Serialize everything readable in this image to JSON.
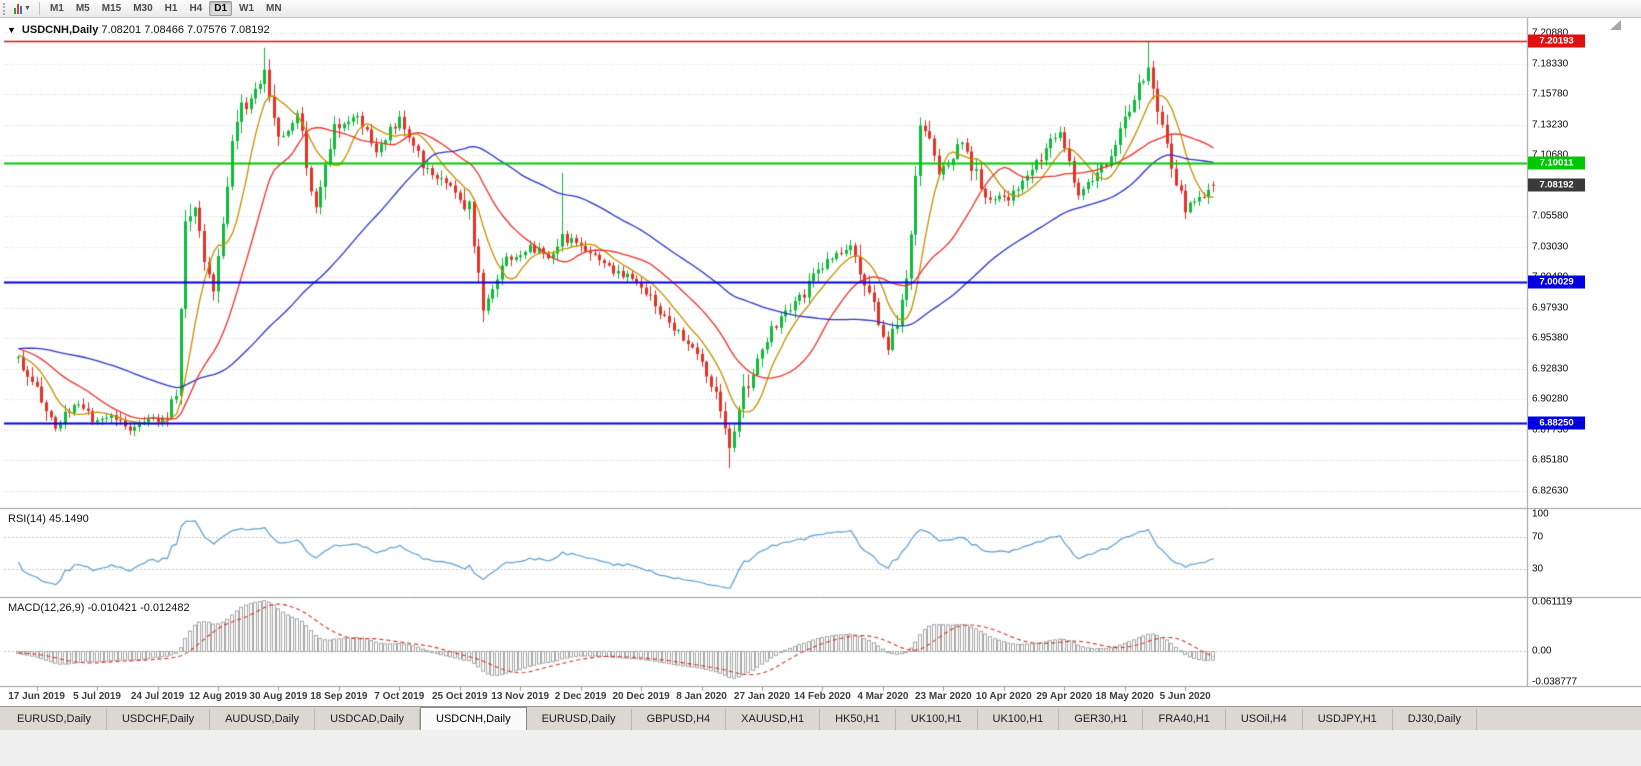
{
  "toolbar": {
    "timeframes": [
      "M1",
      "M5",
      "M15",
      "M30",
      "H1",
      "H4",
      "D1",
      "W1",
      "MN"
    ],
    "active_timeframe": "D1"
  },
  "chart": {
    "title": "USDCNH,Daily",
    "ohlc_text": "7.08201 7.08466 7.07576 7.08192",
    "price_axis": {
      "min": 6.81254,
      "max": 7.22138,
      "labels": [
        "7.20880",
        "7.18330",
        "7.15780",
        "7.13230",
        "7.10680",
        "7.08130",
        "7.05580",
        "7.03030",
        "7.00480",
        "6.97930",
        "6.95380",
        "6.92830",
        "6.90280",
        "6.87730",
        "6.85180",
        "6.82630"
      ]
    },
    "horizontal_lines": [
      {
        "value": 7.20193,
        "label": "7.20193",
        "color": "#e01010",
        "width": 1.4
      },
      {
        "value": 7.10011,
        "label": "7.10011",
        "color": "#00c800",
        "width": 2
      },
      {
        "value": 7.00029,
        "label": "7.00029",
        "color": "#0000e0",
        "width": 2
      },
      {
        "value": 6.8825,
        "label": "6.88250",
        "color": "#0000e0",
        "width": 2
      }
    ],
    "bid_badge": {
      "value": 7.08192,
      "label": "7.08192",
      "color": "#3a3a3a"
    },
    "colors": {
      "background": "#ffffff",
      "grid": "#d6d6d6",
      "candle_up": "#10b93c",
      "candle_down": "#e03228",
      "ma_fast_gold": "#c49000",
      "ma_mid_red": "#f03028",
      "ma_slow_blue": "#2a35c8",
      "rsi_line": "#5d9fd3",
      "macd_hist": "#a8a8a8",
      "macd_signal": "#d23a2e"
    }
  },
  "rsi": {
    "name": "RSI(14)",
    "value": "45.1490",
    "axis_labels": [
      "100",
      "70",
      "30"
    ],
    "axis_values": [
      100,
      70,
      30
    ],
    "levels": [
      70,
      30
    ],
    "range": [
      -5,
      105
    ]
  },
  "macd": {
    "name": "MACD(12,26,9)",
    "values": "-0.010421 -0.012482",
    "axis_labels": [
      "0.061119",
      "0.00",
      "-0.038777"
    ],
    "axis_values": [
      0.061119,
      0,
      -0.038777
    ],
    "range": [
      -0.042,
      0.065
    ]
  },
  "date_axis": [
    "17 Jun 2019",
    "5 Jul 2019",
    "24 Jul 2019",
    "12 Aug 2019",
    "30 Aug 2019",
    "18 Sep 2019",
    "7 Oct 2019",
    "25 Oct 2019",
    "13 Nov 2019",
    "2 Dec 2019",
    "20 Dec 2019",
    "8 Jan 2020",
    "27 Jan 2020",
    "14 Feb 2020",
    "4 Mar 2020",
    "23 Mar 2020",
    "10 Apr 2020",
    "29 Apr 2020",
    "18 May 2020",
    "5 Jun 2020"
  ],
  "tabs": {
    "active_index": 4,
    "items": [
      "EURUSD,Daily",
      "USDCHF,Daily",
      "AUDUSD,Daily",
      "USDCAD,Daily",
      "USDCNH,Daily",
      "EURUSD,Daily",
      "GBPUSD,H4",
      "XAUUSD,H1",
      "HK50,H1",
      "UK100,H1",
      "UK100,H1",
      "GER30,H1",
      "FRA40,H1",
      "USOil,H4",
      "USDJPY,H1",
      "DJ30,Daily"
    ],
    "active_label": "USDCNH,Daily"
  },
  "chart_data": {
    "type": "candlestick",
    "symbol": "USDCNH",
    "timeframe": "Daily",
    "bars": 258,
    "label_every": 13,
    "first_label_index": 4,
    "price_range": [
      6.81254,
      7.22138
    ],
    "date_ticks": [
      "17 Jun 2019",
      "5 Jul 2019",
      "24 Jul 2019",
      "12 Aug 2019",
      "30 Aug 2019",
      "18 Sep 2019",
      "7 Oct 2019",
      "25 Oct 2019",
      "13 Nov 2019",
      "2 Dec 2019",
      "20 Dec 2019",
      "8 Jan 2020",
      "27 Jan 2020",
      "14 Feb 2020",
      "4 Mar 2020",
      "23 Mar 2020",
      "10 Apr 2020",
      "29 Apr 2020",
      "18 May 2020",
      "5 Jun 2020"
    ],
    "last_bar": {
      "open": 7.08201,
      "high": 7.08466,
      "low": 7.07576,
      "close": 7.08192
    },
    "history_anchors": [
      [
        -60,
        6.9
      ],
      [
        -30,
        6.965
      ],
      [
        -10,
        6.945
      ],
      [
        -1,
        6.938
      ]
    ],
    "close_path_anchors": [
      [
        0,
        6.935
      ],
      [
        4,
        6.912
      ],
      [
        8,
        6.878
      ],
      [
        12,
        6.9
      ],
      [
        16,
        6.886
      ],
      [
        20,
        6.89
      ],
      [
        24,
        6.876
      ],
      [
        28,
        6.884
      ],
      [
        32,
        6.888
      ],
      [
        34,
        6.905
      ],
      [
        36,
        7.045
      ],
      [
        38,
        7.06
      ],
      [
        40,
        7.02
      ],
      [
        42,
        6.998
      ],
      [
        44,
        7.055
      ],
      [
        47,
        7.14
      ],
      [
        51,
        7.158
      ],
      [
        53,
        7.175
      ],
      [
        56,
        7.118
      ],
      [
        60,
        7.142
      ],
      [
        64,
        7.062
      ],
      [
        68,
        7.128
      ],
      [
        73,
        7.142
      ],
      [
        77,
        7.112
      ],
      [
        82,
        7.136
      ],
      [
        87,
        7.1
      ],
      [
        92,
        7.082
      ],
      [
        97,
        7.062
      ],
      [
        100,
        6.978
      ],
      [
        104,
        7.016
      ],
      [
        110,
        7.03
      ],
      [
        114,
        7.022
      ],
      [
        117,
        7.038
      ],
      [
        121,
        7.03
      ],
      [
        127,
        7.012
      ],
      [
        133,
        7.002
      ],
      [
        139,
        6.972
      ],
      [
        145,
        6.942
      ],
      [
        150,
        6.912
      ],
      [
        153,
        6.862
      ],
      [
        156,
        6.91
      ],
      [
        162,
        6.962
      ],
      [
        168,
        6.986
      ],
      [
        174,
        7.02
      ],
      [
        179,
        7.032
      ],
      [
        184,
        6.978
      ],
      [
        187,
        6.942
      ],
      [
        191,
        7.0
      ],
      [
        194,
        7.138
      ],
      [
        198,
        7.092
      ],
      [
        203,
        7.118
      ],
      [
        208,
        7.072
      ],
      [
        213,
        7.07
      ],
      [
        218,
        7.092
      ],
      [
        224,
        7.128
      ],
      [
        228,
        7.072
      ],
      [
        234,
        7.102
      ],
      [
        240,
        7.158
      ],
      [
        243,
        7.178
      ],
      [
        246,
        7.128
      ],
      [
        251,
        7.062
      ],
      [
        254,
        7.072
      ],
      [
        257,
        7.082
      ]
    ],
    "extreme_overrides": [
      [
        53,
        "high",
        7.1965
      ],
      [
        117,
        "high",
        7.092
      ],
      [
        153,
        "low",
        6.8452
      ],
      [
        243,
        "high",
        7.20193
      ]
    ],
    "horizontal_line_values": [
      7.20193,
      7.10011,
      7.00029,
      6.8825
    ],
    "moving_averages": [
      {
        "period": 8,
        "color_key": "ma_fast_gold"
      },
      {
        "period": 20,
        "color_key": "ma_mid_red"
      },
      {
        "period": 55,
        "color_key": "ma_slow_blue"
      }
    ],
    "rsi": {
      "period": 14,
      "current": 45.149,
      "levels": [
        70,
        30
      ]
    },
    "macd": {
      "fast": 12,
      "slow": 26,
      "signal": 9,
      "current_main": -0.010421,
      "current_signal": -0.012482,
      "scale": [
        -0.038777,
        0.061119
      ]
    }
  }
}
